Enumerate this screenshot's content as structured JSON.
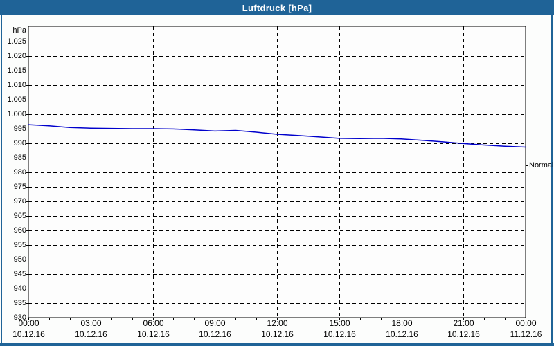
{
  "window": {
    "title": "Luftdruck [hPa]"
  },
  "colors": {
    "titlebar_bg": "#1F6397",
    "frame_border": "#1F6397",
    "page_bg": "#FCFDFC",
    "plot_bg": "#FDFDFD",
    "grid": "#000000",
    "axis": "#000000",
    "line": "#0000CC",
    "title_text": "#FFFFFF",
    "label_text": "#000000"
  },
  "chart": {
    "unit_label": "hPa",
    "normal_marker": {
      "label": "Normal",
      "value": 982.3
    },
    "y_axis": {
      "min": 930,
      "ticks": [
        {
          "label": "1.025",
          "value": 1025
        },
        {
          "label": "1.020",
          "value": 1020
        },
        {
          "label": "1.015",
          "value": 1015
        },
        {
          "label": "1.010",
          "value": 1010
        },
        {
          "label": "1.005",
          "value": 1005
        },
        {
          "label": "1.000",
          "value": 1000
        },
        {
          "label": "995",
          "value": 995
        },
        {
          "label": "990",
          "value": 990
        },
        {
          "label": "985",
          "value": 985
        },
        {
          "label": "980",
          "value": 980
        },
        {
          "label": "975",
          "value": 975
        },
        {
          "label": "970",
          "value": 970
        },
        {
          "label": "965",
          "value": 965
        },
        {
          "label": "960",
          "value": 960
        },
        {
          "label": "955",
          "value": 955
        },
        {
          "label": "950",
          "value": 950
        },
        {
          "label": "945",
          "value": 945
        },
        {
          "label": "940",
          "value": 940
        },
        {
          "label": "935",
          "value": 935
        },
        {
          "label": "930",
          "value": 930
        }
      ]
    },
    "x_axis": {
      "ticks": [
        {
          "hour": 0,
          "time": "00:00",
          "date": "10.12.16"
        },
        {
          "hour": 3,
          "time": "03:00",
          "date": "10.12.16"
        },
        {
          "hour": 6,
          "time": "06:00",
          "date": "10.12.16"
        },
        {
          "hour": 9,
          "time": "09:00",
          "date": "10.12.16"
        },
        {
          "hour": 12,
          "time": "12:00",
          "date": "10.12.16"
        },
        {
          "hour": 15,
          "time": "15:00",
          "date": "10.12.16"
        },
        {
          "hour": 18,
          "time": "18:00",
          "date": "10.12.16"
        },
        {
          "hour": 21,
          "time": "21:00",
          "date": "10.12.16"
        },
        {
          "hour": 24,
          "time": "00:00",
          "date": "11.12.16"
        }
      ],
      "minor_tick_every_hours": 1
    }
  },
  "chart_data": {
    "type": "line",
    "title": "Luftdruck [hPa]",
    "ylabel": "hPa",
    "ylim": [
      930,
      1030
    ],
    "y_tick_step": 5,
    "grid": true,
    "x_hours": [
      0,
      1,
      2,
      3,
      4,
      5,
      6,
      7,
      8,
      9,
      10,
      11,
      12,
      13,
      14,
      15,
      16,
      17,
      18,
      19,
      20,
      21,
      22,
      23,
      24
    ],
    "x_start": "10.12.16 00:00",
    "x_end": "11.12.16 00:00",
    "series": [
      {
        "name": "Luftdruck",
        "values": [
          996.4,
          996.0,
          995.4,
          995.2,
          995.1,
          995.0,
          995.0,
          994.9,
          994.6,
          994.2,
          994.4,
          993.8,
          993.1,
          992.7,
          992.2,
          991.7,
          991.6,
          991.7,
          991.5,
          991.0,
          990.5,
          989.9,
          989.4,
          989.0,
          988.7
        ]
      }
    ],
    "annotations": [
      {
        "label": "Normal",
        "value": 982.3,
        "position": "right-axis"
      }
    ]
  }
}
